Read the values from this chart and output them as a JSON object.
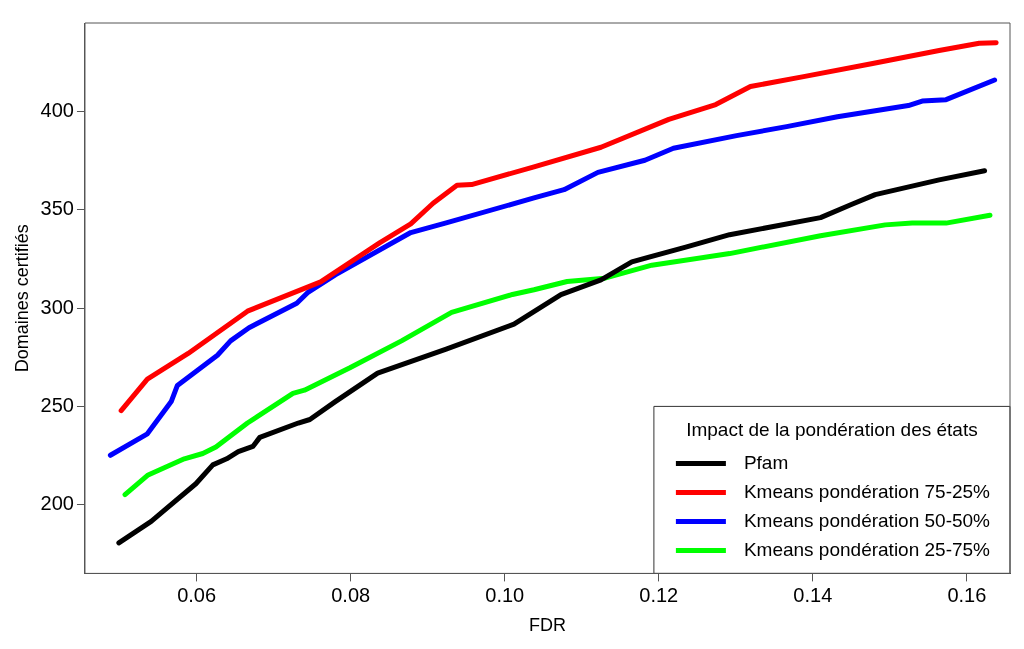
{
  "chart_data": {
    "type": "line",
    "xlabel": "FDR",
    "ylabel": "Domaines certifiés",
    "legend_title": "Impact de la pondération des états",
    "legend": "bottom right",
    "grid": false,
    "marker": "none",
    "line_style": "solid",
    "xlim": [
      0.0455,
      0.1656
    ],
    "ylim": [
      165,
      445
    ],
    "xticks": [
      0.06,
      0.08,
      {
        "value": 0.1,
        "label": "0.10"
      },
      0.12,
      0.14,
      0.16
    ],
    "yticks": [
      200,
      250,
      300,
      350,
      400
    ],
    "series": [
      {
        "name": "Pfam",
        "color": "#000000",
        "x": [
          0.0499,
          0.0541,
          0.0599,
          0.0621,
          0.0639,
          0.0654,
          0.0673,
          0.0682,
          0.0732,
          0.0747,
          0.078,
          0.0835,
          0.0924,
          0.1012,
          0.1073,
          0.1125,
          0.1165,
          0.1235,
          0.1292,
          0.141,
          0.145,
          0.1481,
          0.1564,
          0.1623
        ],
        "values": [
          180.5,
          191.5,
          210.6,
          220.2,
          223.3,
          226.9,
          229.6,
          234.2,
          241.5,
          243.3,
          252.4,
          266.9,
          279.1,
          291.8,
          306.8,
          314.3,
          323.5,
          331,
          337.3,
          346,
          352.7,
          357.7,
          365.2,
          369.8
        ]
      },
      {
        "name": "Kmeans pondération 75-25%",
        "color": "#ff0000",
        "x": [
          0.0502,
          0.0536,
          0.0589,
          0.0666,
          0.0761,
          0.0838,
          0.0878,
          0.0907,
          0.0938,
          0.0957,
          0.1038,
          0.1125,
          0.1213,
          0.1274,
          0.1319,
          0.1388,
          0.1476,
          0.1564,
          0.1616,
          0.1638
        ],
        "values": [
          247.8,
          263.8,
          276.9,
          298.4,
          313.3,
          333.3,
          342.8,
          353.3,
          362.4,
          362.8,
          371.8,
          381.8,
          396,
          403.5,
          412.7,
          417.7,
          424.3,
          431,
          434.7,
          435
        ]
      },
      {
        "name": "Kmeans pondération 50-50%",
        "color": "#0000ff",
        "x": [
          0.0488,
          0.0536,
          0.0567,
          0.0575,
          0.0627,
          0.0644,
          0.0668,
          0.073,
          0.0744,
          0.078,
          0.0878,
          0.0924,
          0.1038,
          0.1077,
          0.1121,
          0.1182,
          0.1219,
          0.1301,
          0.1366,
          0.1432,
          0.1524,
          0.1542,
          0.1573,
          0.1636
        ],
        "values": [
          225.1,
          236,
          252.4,
          260.6,
          276,
          283.3,
          290,
          302.4,
          307.8,
          316.9,
          338.4,
          343.3,
          356,
          360.2,
          369,
          375.2,
          381.3,
          387.7,
          392.3,
          397.3,
          403,
          405.3,
          406,
          416
        ]
      },
      {
        "name": "Kmeans pondération 25-75%",
        "color": "#00ff00",
        "x": [
          0.0507,
          0.0537,
          0.0584,
          0.0608,
          0.0625,
          0.0666,
          0.0725,
          0.074,
          0.0799,
          0.0866,
          0.0931,
          0.101,
          0.1038,
          0.1081,
          0.113,
          0.1191,
          0.1292,
          0.141,
          0.1494,
          0.1529,
          0.1573,
          0.163
        ],
        "values": [
          205.1,
          215.1,
          223.3,
          226,
          229.3,
          241.5,
          256.6,
          258.2,
          269.6,
          283.3,
          297.8,
          306.9,
          309.3,
          313.5,
          315.2,
          321.8,
          327.7,
          336.8,
          342.3,
          343.2,
          343.2,
          347.2
        ]
      }
    ]
  }
}
